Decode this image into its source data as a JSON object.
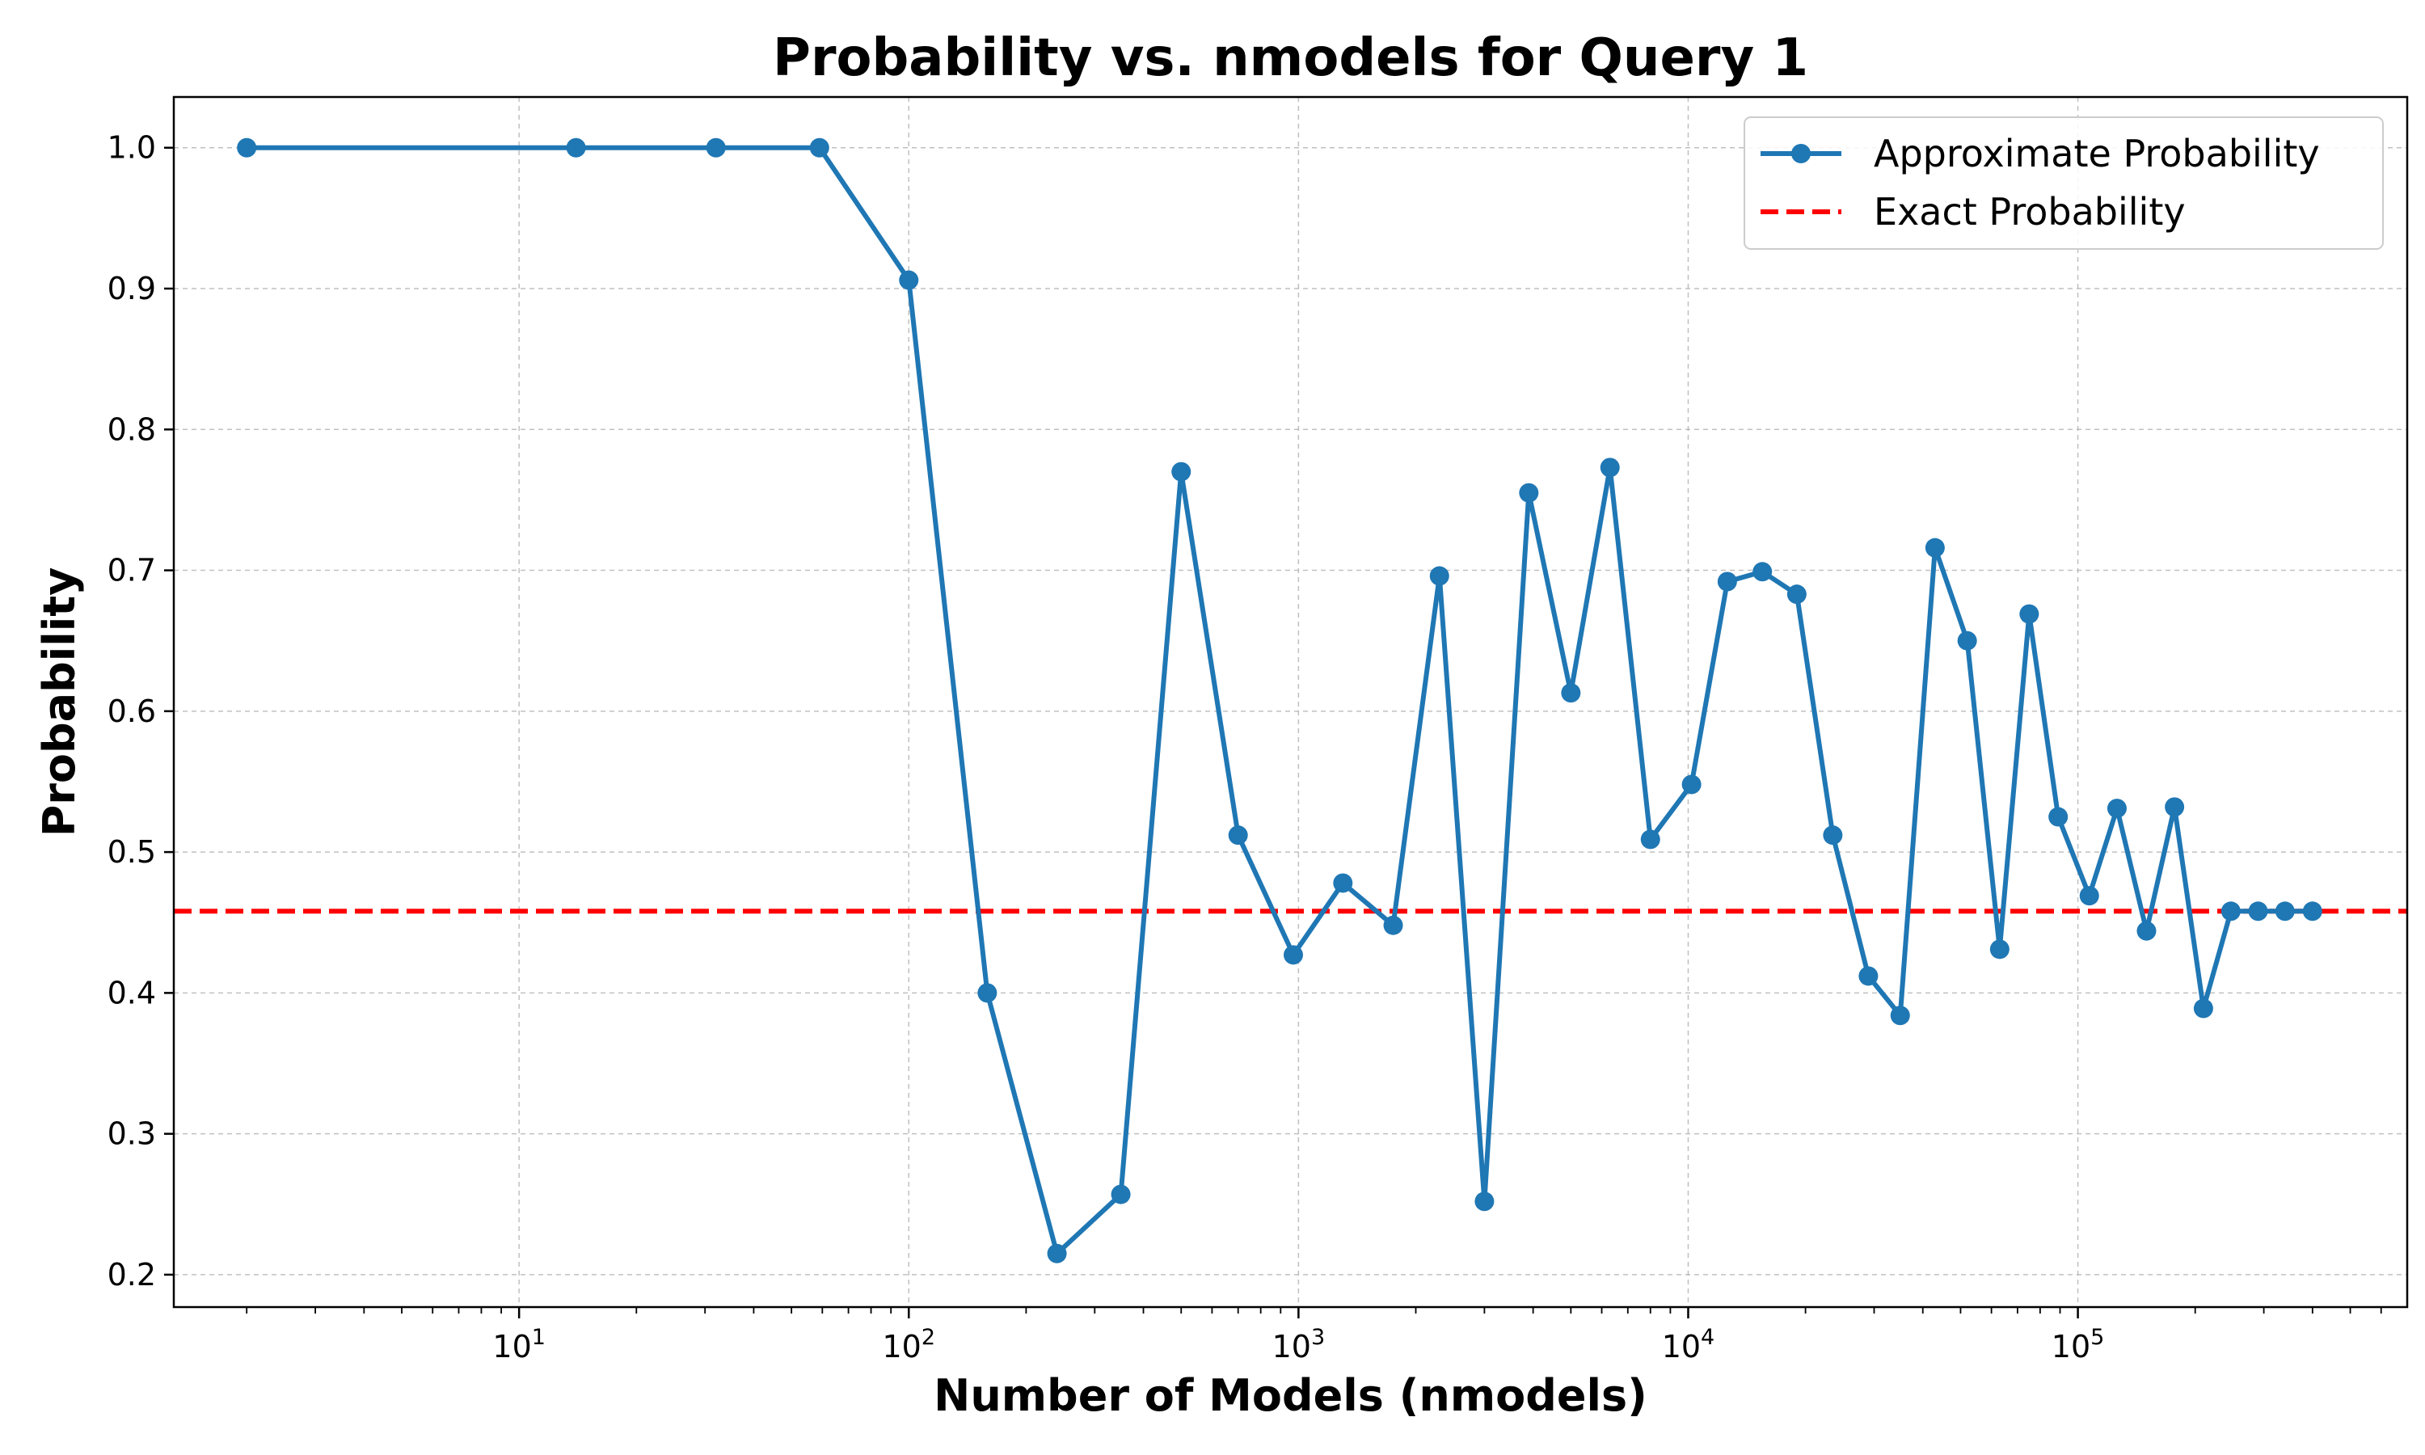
{
  "chart_data": {
    "type": "line",
    "title": "Probability vs. nmodels for Query 1",
    "xlabel": "Number of Models (nmodels)",
    "ylabel": "Probability",
    "xscale": "log",
    "xlim": [
      1.3,
      700000
    ],
    "ylim": [
      0.177,
      1.036
    ],
    "grid": true,
    "legend_position": "upper-right",
    "x_ticks": [
      {
        "value": 10,
        "base": "10",
        "exp": "1"
      },
      {
        "value": 100,
        "base": "10",
        "exp": "2"
      },
      {
        "value": 1000,
        "base": "10",
        "exp": "3"
      },
      {
        "value": 10000,
        "base": "10",
        "exp": "4"
      },
      {
        "value": 100000,
        "base": "10",
        "exp": "5"
      }
    ],
    "y_ticks": [
      "0.2",
      "0.3",
      "0.4",
      "0.5",
      "0.6",
      "0.7",
      "0.8",
      "0.9",
      "1.0"
    ],
    "series": [
      {
        "name": "Approximate Probability",
        "color": "#1f77b4",
        "style": "solid-marker",
        "x": [
          2,
          14,
          32,
          59,
          100,
          159,
          240,
          350,
          500,
          700,
          970,
          1300,
          1750,
          2300,
          3000,
          3900,
          5000,
          6300,
          8000,
          10200,
          12600,
          15500,
          19000,
          23500,
          29000,
          35000,
          43000,
          52000,
          63000,
          75000,
          89000,
          107000,
          126000,
          150000,
          177000,
          210000,
          247000,
          290000,
          340000,
          400000
        ],
        "y": [
          1.0,
          1.0,
          1.0,
          1.0,
          0.906,
          0.4,
          0.215,
          0.257,
          0.77,
          0.512,
          0.427,
          0.478,
          0.448,
          0.696,
          0.252,
          0.755,
          0.613,
          0.773,
          0.509,
          0.548,
          0.692,
          0.699,
          0.683,
          0.512,
          0.412,
          0.384,
          0.716,
          0.65,
          0.431,
          0.669,
          0.525,
          0.469,
          0.531,
          0.444,
          0.532,
          0.389,
          0.458,
          0.458,
          0.458,
          0.458
        ]
      },
      {
        "name": "Exact Probability",
        "color": "#ff0000",
        "style": "dashed",
        "y_constant": 0.458
      }
    ]
  }
}
